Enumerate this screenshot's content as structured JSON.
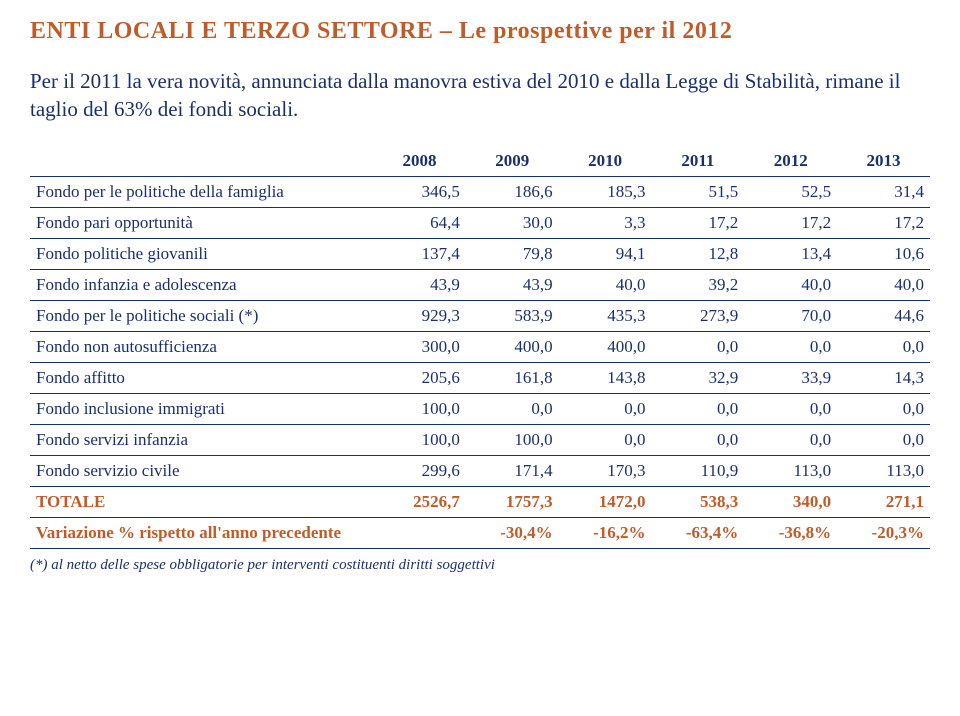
{
  "colors": {
    "accent": "#c05c28",
    "body": "#1a2f6e",
    "border": "#1a2f6e",
    "totale": "#c05c28",
    "background": "#ffffff"
  },
  "title": "ENTI LOCALI E TERZO SETTORE – Le prospettive per il 2012",
  "intro": "Per il 2011 la vera novità, annunciata dalla manovra estiva del 2010 e dalla Legge di Stabilità,  rimane il taglio del 63% dei  fondi sociali.",
  "table": {
    "years": [
      "2008",
      "2009",
      "2010",
      "2011",
      "2012",
      "2013"
    ],
    "rows": [
      {
        "label": "Fondo per le politiche della famiglia",
        "vals": [
          "346,5",
          "186,6",
          "185,3",
          "51,5",
          "52,5",
          "31,4"
        ]
      },
      {
        "label": "Fondo pari opportunità",
        "vals": [
          "64,4",
          "30,0",
          "3,3",
          "17,2",
          "17,2",
          "17,2"
        ]
      },
      {
        "label": "Fondo politiche giovanili",
        "vals": [
          "137,4",
          "79,8",
          "94,1",
          "12,8",
          "13,4",
          "10,6"
        ]
      },
      {
        "label": "Fondo infanzia e adolescenza",
        "vals": [
          "43,9",
          "43,9",
          "40,0",
          "39,2",
          "40,0",
          "40,0"
        ]
      },
      {
        "label": "Fondo per le politiche sociali (*)",
        "vals": [
          "929,3",
          "583,9",
          "435,3",
          "273,9",
          "70,0",
          "44,6"
        ]
      },
      {
        "label": "Fondo non autosufficienza",
        "vals": [
          "300,0",
          "400,0",
          "400,0",
          "0,0",
          "0,0",
          "0,0"
        ]
      },
      {
        "label": "Fondo affitto",
        "vals": [
          "205,6",
          "161,8",
          "143,8",
          "32,9",
          "33,9",
          "14,3"
        ]
      },
      {
        "label": "Fondo inclusione immigrati",
        "vals": [
          "100,0",
          "0,0",
          "0,0",
          "0,0",
          "0,0",
          "0,0"
        ]
      },
      {
        "label": "Fondo servizi infanzia",
        "vals": [
          "100,0",
          "100,0",
          "0,0",
          "0,0",
          "0,0",
          "0,0"
        ]
      },
      {
        "label": "Fondo servizio civile",
        "vals": [
          "299,6",
          "171,4",
          "170,3",
          "110,9",
          "113,0",
          "113,0"
        ]
      }
    ],
    "totale": {
      "label": "TOTALE",
      "vals": [
        "2526,7",
        "1757,3",
        "1472,0",
        "538,3",
        "340,0",
        "271,1"
      ]
    },
    "variation": {
      "label": "Variazione % rispetto all'anno precedente",
      "vals": [
        "",
        "-30,4%",
        "-16,2%",
        "-63,4%",
        "-36,8%",
        "-20,3%"
      ]
    }
  },
  "footnote": "(*) al netto delle spese obbligatorie per interventi costituenti diritti soggettivi",
  "style": {
    "title_fontsize": 24,
    "intro_fontsize": 21,
    "table_fontsize": 17,
    "footnote_fontsize": 15
  }
}
